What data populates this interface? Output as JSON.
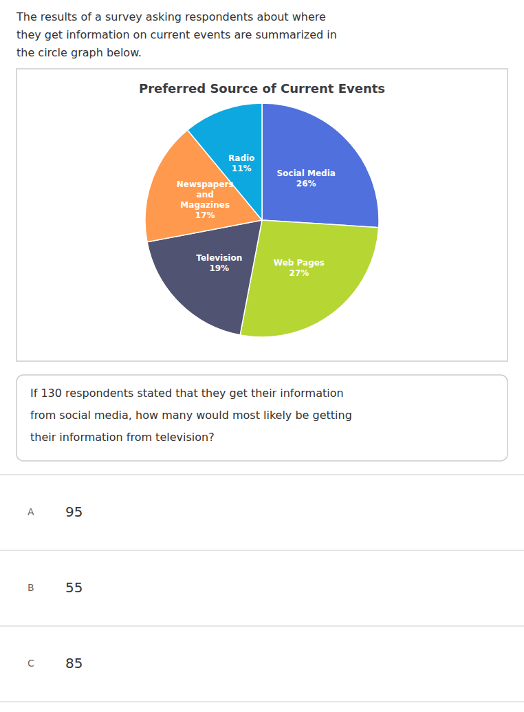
{
  "chart_data": {
    "type": "pie",
    "title": "Preferred Source of Current Events",
    "categories": [
      "Social Media",
      "Web Pages",
      "Television",
      "Newspapers\nand\nMagazines",
      "Radio"
    ],
    "values": [
      26,
      27,
      19,
      17,
      11
    ],
    "value_labels": [
      "26%",
      "27%",
      "19%",
      "17%",
      "11%"
    ],
    "data_labels": true,
    "annotations": [
      [
        "The results of a survey asking respondents about where",
        "they get information on current events are summarized in",
        "the circle graph below."
      ],
      [
        "If 130 respondents stated that they get their information",
        "from social media, how many would most likely be getting",
        "their information from television?"
      ],
      [
        "A",
        "95"
      ],
      [
        "B",
        "55"
      ],
      [
        "C",
        "85"
      ]
    ]
  }
}
